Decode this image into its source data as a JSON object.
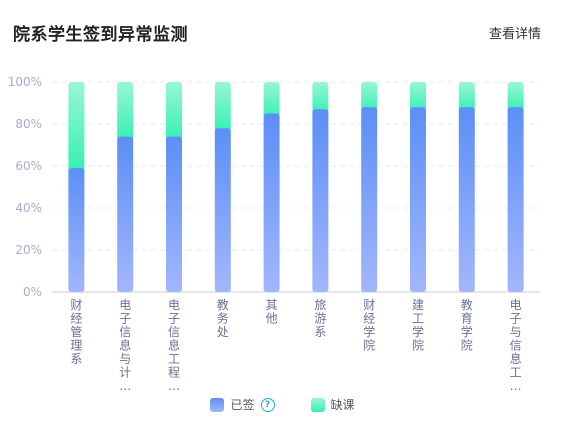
{
  "header": {
    "title": "院系学生签到异常监测",
    "detail_link": "查看详情"
  },
  "colors": {
    "signed_top": "#5b8ff6",
    "signed_bottom": "#a3b6fb",
    "absent_top": "#98f6d6",
    "absent_bottom": "#35f0b4",
    "axis_text": "#a7aed0",
    "grid": "#e8ebf2"
  },
  "chart_data": {
    "type": "bar",
    "stacked": true,
    "categories": [
      "财经管理系",
      "电子信息与计…",
      "电子信息工程…",
      "教务处",
      "其他",
      "旅游系",
      "财经学院",
      "建工学院",
      "教育学院",
      "电子与信息工…"
    ],
    "series": [
      {
        "name": "已签",
        "values": [
          59,
          74,
          74,
          78,
          85,
          87,
          88,
          88,
          88,
          88
        ]
      },
      {
        "name": "缺课",
        "values": [
          41,
          26,
          26,
          22,
          15,
          13,
          12,
          12,
          12,
          12
        ]
      }
    ],
    "y_ticks": [
      "0%",
      "20%",
      "40%",
      "60%",
      "80%",
      "100%"
    ],
    "ylim": [
      0,
      100
    ],
    "grid": true,
    "legend_position": "bottom-center"
  },
  "legend": {
    "signed_label": "已签",
    "absent_label": "缺课",
    "help_icon": "?"
  }
}
